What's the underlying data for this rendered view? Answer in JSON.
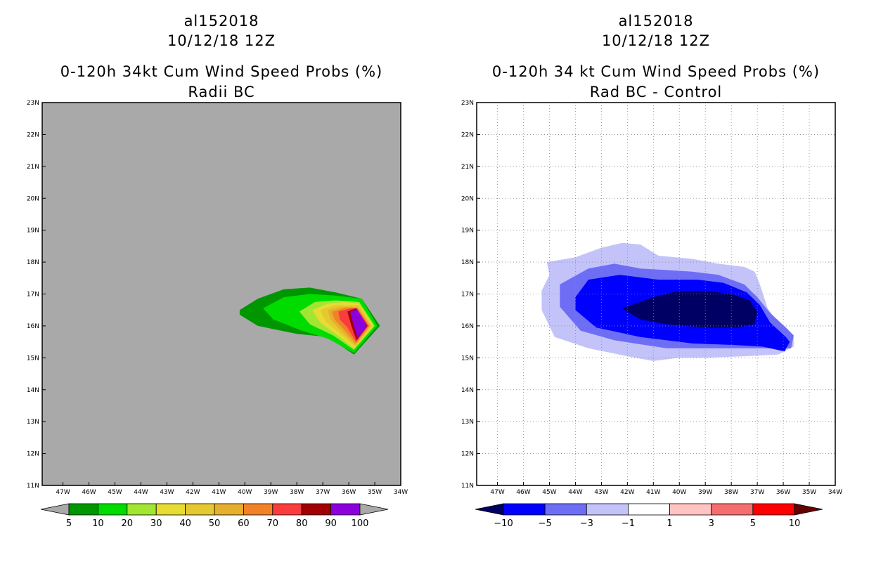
{
  "chart_data": [
    {
      "type": "heatmap",
      "storm_id": "al152018",
      "date": "10/12/18 12Z",
      "title": "0-120h 34kt Cum Wind Speed Probs (%)",
      "subtitle": "Radii BC",
      "background_color": "#a9a9a9",
      "xlim": [
        -47.8,
        -34
      ],
      "ylim": [
        11,
        23
      ],
      "xticks": [
        "47W",
        "46W",
        "45W",
        "44W",
        "43W",
        "42W",
        "41W",
        "40W",
        "39W",
        "38W",
        "37W",
        "36W",
        "35W",
        "34W"
      ],
      "yticks": [
        "11N",
        "12N",
        "13N",
        "14N",
        "15N",
        "16N",
        "17N",
        "18N",
        "19N",
        "20N",
        "21N",
        "22N",
        "23N"
      ],
      "grid": false,
      "colorbar": {
        "levels": [
          "5",
          "10",
          "20",
          "30",
          "40",
          "50",
          "60",
          "70",
          "80",
          "90",
          "100"
        ],
        "colors": [
          "#009600",
          "#00dc00",
          "#a0e632",
          "#e6dc32",
          "#e6c832",
          "#e6af2d",
          "#f08228",
          "#fa3c3c",
          "#a00000",
          "#8c00dc"
        ],
        "under_color": "#a9a9a9",
        "over_color": "#a9a9a9"
      },
      "contours": [
        {
          "level": 5,
          "color": "#009600",
          "points": [
            [
              -40.2,
              16.5
            ],
            [
              -39.5,
              16.85
            ],
            [
              -38.5,
              17.15
            ],
            [
              -37.5,
              17.2
            ],
            [
              -36.5,
              17.05
            ],
            [
              -35.5,
              16.85
            ],
            [
              -34.8,
              16.0
            ],
            [
              -35.8,
              15.1
            ],
            [
              -36.8,
              15.65
            ],
            [
              -38.0,
              15.75
            ],
            [
              -39.5,
              16.0
            ],
            [
              -40.2,
              16.35
            ]
          ]
        },
        {
          "level": 10,
          "color": "#00dc00",
          "points": [
            [
              -39.3,
              16.55
            ],
            [
              -38.5,
              16.9
            ],
            [
              -37.5,
              17.0
            ],
            [
              -36.5,
              16.95
            ],
            [
              -35.5,
              16.85
            ],
            [
              -34.9,
              16.0
            ],
            [
              -35.8,
              15.15
            ],
            [
              -36.8,
              15.6
            ],
            [
              -37.8,
              15.85
            ],
            [
              -38.9,
              16.2
            ]
          ]
        },
        {
          "level": 20,
          "color": "#a0e632",
          "points": [
            [
              -37.9,
              16.45
            ],
            [
              -37.3,
              16.75
            ],
            [
              -36.5,
              16.8
            ],
            [
              -35.6,
              16.75
            ],
            [
              -35.0,
              16.0
            ],
            [
              -35.8,
              15.25
            ],
            [
              -36.6,
              15.7
            ],
            [
              -37.5,
              16.05
            ]
          ]
        },
        {
          "level": 30,
          "color": "#e6dc32",
          "points": [
            [
              -37.4,
              16.5
            ],
            [
              -36.8,
              16.7
            ],
            [
              -36.2,
              16.75
            ],
            [
              -35.6,
              16.7
            ],
            [
              -35.05,
              16.0
            ],
            [
              -35.8,
              15.3
            ],
            [
              -36.5,
              15.75
            ],
            [
              -37.1,
              16.1
            ]
          ]
        },
        {
          "level": 40,
          "color": "#e6c832",
          "points": [
            [
              -37.1,
              16.5
            ],
            [
              -36.5,
              16.65
            ],
            [
              -35.6,
              16.65
            ],
            [
              -35.1,
              16.0
            ],
            [
              -35.75,
              15.35
            ],
            [
              -36.4,
              15.8
            ],
            [
              -36.9,
              16.15
            ]
          ]
        },
        {
          "level": 50,
          "color": "#e6af2d",
          "points": [
            [
              -36.8,
              16.5
            ],
            [
              -36.3,
              16.6
            ],
            [
              -35.65,
              16.6
            ],
            [
              -35.15,
              16.0
            ],
            [
              -35.75,
              15.4
            ],
            [
              -36.3,
              15.85
            ],
            [
              -36.7,
              16.2
            ]
          ]
        },
        {
          "level": 60,
          "color": "#f08228",
          "points": [
            [
              -36.65,
              16.45
            ],
            [
              -36.1,
              16.57
            ],
            [
              -35.68,
              16.57
            ],
            [
              -35.2,
              16.0
            ],
            [
              -35.72,
              15.45
            ],
            [
              -36.2,
              15.9
            ],
            [
              -36.55,
              16.2
            ]
          ]
        },
        {
          "level": 70,
          "color": "#fa3c3c",
          "points": [
            [
              -36.4,
              16.45
            ],
            [
              -35.9,
              16.55
            ],
            [
              -35.68,
              16.55
            ],
            [
              -35.25,
              16.0
            ],
            [
              -35.72,
              15.5
            ],
            [
              -36.05,
              15.95
            ],
            [
              -36.35,
              16.2
            ]
          ]
        },
        {
          "level": 80,
          "color": "#a00000",
          "points": [
            [
              -36.05,
              16.45
            ],
            [
              -35.72,
              16.55
            ],
            [
              -35.28,
              16.0
            ],
            [
              -35.7,
              15.55
            ],
            [
              -35.9,
              16.0
            ]
          ]
        },
        {
          "level": 90,
          "color": "#8c00dc",
          "points": [
            [
              -35.95,
              16.45
            ],
            [
              -35.68,
              16.52
            ],
            [
              -35.3,
              16.0
            ],
            [
              -35.66,
              15.62
            ],
            [
              -35.82,
              16.05
            ]
          ]
        }
      ]
    },
    {
      "type": "heatmap",
      "storm_id": "al152018",
      "date": "10/12/18 12Z",
      "title": "0-120h 34 kt Cum Wind Speed Probs (%)",
      "subtitle": "Rad BC - Control",
      "background_color": "#ffffff",
      "xlim": [
        -47.8,
        -34
      ],
      "ylim": [
        11,
        23
      ],
      "xticks": [
        "47W",
        "46W",
        "45W",
        "44W",
        "43W",
        "42W",
        "41W",
        "40W",
        "39W",
        "38W",
        "37W",
        "36W",
        "35W",
        "34W"
      ],
      "yticks": [
        "11N",
        "12N",
        "13N",
        "14N",
        "15N",
        "16N",
        "17N",
        "18N",
        "19N",
        "20N",
        "21N",
        "22N",
        "23N"
      ],
      "grid": true,
      "colorbar": {
        "levels": [
          "-10",
          "-5",
          "-3",
          "-1",
          "1",
          "3",
          "5",
          "10"
        ],
        "colors": [
          "#0000ff",
          "#6e6ef5",
          "#c3c3fa",
          "#ffffff",
          "#ffc3c3",
          "#f56e6e",
          "#ff0000"
        ],
        "under_color": "#000064",
        "over_color": "#640000"
      },
      "contours": [
        {
          "level": -1,
          "color": "#c3c3fa",
          "points": [
            [
              -45.1,
              18.0
            ],
            [
              -44.0,
              18.15
            ],
            [
              -43.0,
              18.45
            ],
            [
              -42.2,
              18.6
            ],
            [
              -41.5,
              18.55
            ],
            [
              -40.8,
              18.2
            ],
            [
              -39.5,
              18.1
            ],
            [
              -38.5,
              17.95
            ],
            [
              -37.5,
              17.85
            ],
            [
              -37.1,
              17.7
            ],
            [
              -36.9,
              17.3
            ],
            [
              -36.6,
              16.55
            ],
            [
              -36.1,
              16.0
            ],
            [
              -35.6,
              15.65
            ],
            [
              -35.6,
              15.35
            ],
            [
              -36.2,
              15.1
            ],
            [
              -37.5,
              15.05
            ],
            [
              -39.0,
              15.0
            ],
            [
              -40.0,
              15.0
            ],
            [
              -41.0,
              14.9
            ],
            [
              -42.0,
              15.05
            ],
            [
              -43.5,
              15.3
            ],
            [
              -44.8,
              15.65
            ],
            [
              -45.3,
              16.5
            ],
            [
              -45.3,
              17.1
            ],
            [
              -45.0,
              17.6
            ]
          ]
        },
        {
          "level": -3,
          "color": "#6e6ef5",
          "points": [
            [
              -44.6,
              17.3
            ],
            [
              -43.5,
              17.8
            ],
            [
              -42.5,
              17.95
            ],
            [
              -41.5,
              17.8
            ],
            [
              -40.5,
              17.75
            ],
            [
              -39.5,
              17.7
            ],
            [
              -38.5,
              17.6
            ],
            [
              -37.5,
              17.3
            ],
            [
              -37.0,
              16.9
            ],
            [
              -36.5,
              16.4
            ],
            [
              -35.9,
              15.95
            ],
            [
              -35.6,
              15.7
            ],
            [
              -35.7,
              15.3
            ],
            [
              -36.5,
              15.3
            ],
            [
              -37.5,
              15.3
            ],
            [
              -39.0,
              15.3
            ],
            [
              -40.5,
              15.3
            ],
            [
              -42.5,
              15.55
            ],
            [
              -43.8,
              15.85
            ],
            [
              -44.6,
              16.6
            ]
          ]
        },
        {
          "level": -5,
          "color": "#0000ff",
          "points": [
            [
              -44.0,
              16.9
            ],
            [
              -43.5,
              17.45
            ],
            [
              -42.3,
              17.6
            ],
            [
              -40.8,
              17.45
            ],
            [
              -39.3,
              17.45
            ],
            [
              -38.3,
              17.35
            ],
            [
              -37.4,
              17.05
            ],
            [
              -36.9,
              16.65
            ],
            [
              -36.5,
              16.1
            ],
            [
              -35.9,
              15.65
            ],
            [
              -35.75,
              15.5
            ],
            [
              -35.95,
              15.2
            ],
            [
              -36.8,
              15.35
            ],
            [
              -37.8,
              15.4
            ],
            [
              -39.5,
              15.45
            ],
            [
              -41.5,
              15.65
            ],
            [
              -43.2,
              15.95
            ],
            [
              -44.0,
              16.5
            ]
          ]
        },
        {
          "level": -10,
          "color": "#000064",
          "points": [
            [
              -42.2,
              16.55
            ],
            [
              -41.0,
              16.9
            ],
            [
              -40.0,
              17.1
            ],
            [
              -39.0,
              17.1
            ],
            [
              -38.0,
              17.0
            ],
            [
              -37.3,
              16.8
            ],
            [
              -37.0,
              16.45
            ],
            [
              -37.1,
              16.05
            ],
            [
              -37.8,
              15.95
            ],
            [
              -39.0,
              15.95
            ],
            [
              -40.5,
              16.05
            ],
            [
              -41.5,
              16.2
            ]
          ]
        }
      ]
    }
  ]
}
